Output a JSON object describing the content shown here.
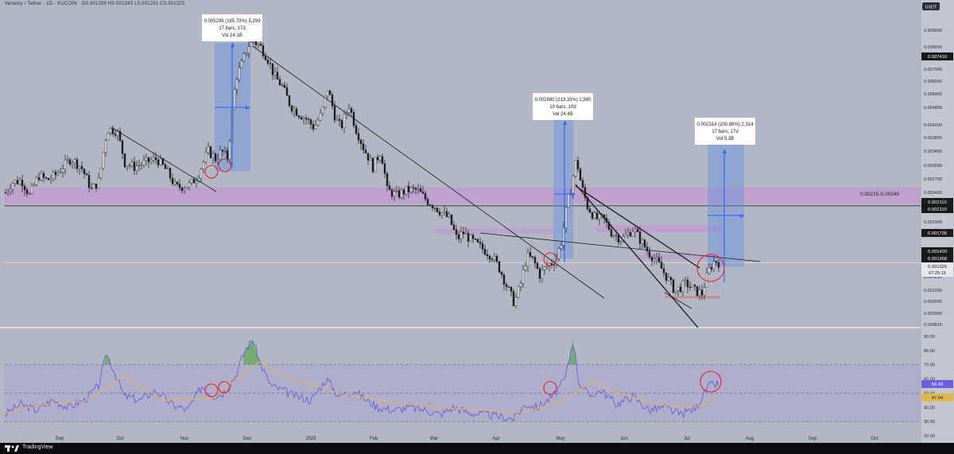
{
  "header": {
    "symbol_line": "Verasity / Tether · 1D · KUCOIN",
    "ohlc": {
      "o_label": "O",
      "o": "0.001299",
      "h_label": "H",
      "h": "0.001343",
      "l_label": "L",
      "l": "0.001251",
      "c_label": "C",
      "c": "0.001325"
    }
  },
  "price_scale": {
    "currency": "USDT",
    "ticks": [
      "0.009000",
      "0.008000",
      "0.007000",
      "0.006000",
      "0.005400",
      "0.004800",
      "0.004200",
      "0.003800",
      "0.003400",
      "0.003000",
      "0.002700",
      "0.002400",
      "0.001900",
      "0.001210",
      "0.001090",
      "0.000990",
      "0.000900",
      "0.000815"
    ],
    "tags": {
      "recent_high": "0.007416",
      "line_a": "0.002110",
      "line_b": "0.002110",
      "res_mid": "0.001735",
      "res_low": "0.001420",
      "res_low2": "0.001368",
      "last_price": "0.001325",
      "countdown": "07:25:19"
    },
    "zone_label": "0.00215-0.00245"
  },
  "rsi_scale": {
    "ticks": [
      "90.00",
      "80.00",
      "70.00",
      "60.00",
      "50.00",
      "40.00",
      "30.00",
      "20.00"
    ],
    "tags": {
      "rsi": "56.43",
      "ma": "47.04"
    }
  },
  "time_axis": [
    "Sep",
    "Oct",
    "Nov",
    "Dec",
    "2025",
    "Feb",
    "Mar",
    "Apr",
    "May",
    "Jun",
    "Jul",
    "Aug",
    "Sep",
    "Oct"
  ],
  "measure_boxes": [
    {
      "line1": "0.005299 (185.73%) 5,299",
      "line2": "17 bars, 17d",
      "line3": "Vol 24.1B"
    },
    {
      "line1": "0.002880 (213.33%) 2,880",
      "line2": "10 bars, 10d",
      "line3": "Vol 24.4B"
    },
    {
      "line1": "0.002314 (200.86%) 2,314",
      "line2": "17 bars, 17d",
      "line3": "Vol 5.3B"
    }
  ],
  "footer": {
    "brand": "TradingView"
  },
  "colors": {
    "background": "#b3b6c3",
    "candle": "#1e1e22",
    "zone": "#c68fd6",
    "measure": "#6a8fe0",
    "arrow": "#2962ff",
    "rsi_line": "#6d5ee0",
    "rsi_ma": "#e0b84a",
    "circle": "#e0282c"
  },
  "chart_data": {
    "type": "candlestick",
    "scale": "log",
    "ylim": [
      0.00079,
      0.0105
    ],
    "months": [
      "Sep",
      "Oct",
      "Nov",
      "Dec",
      "Jan",
      "Feb",
      "Mar",
      "Apr",
      "May",
      "Jun",
      "Jul",
      "Aug",
      "Sep",
      "Oct"
    ],
    "price_anchors": [
      [
        0,
        0.00235
      ],
      [
        8,
        0.00255
      ],
      [
        20,
        0.0026
      ],
      [
        30,
        0.0023
      ],
      [
        42,
        0.0027
      ],
      [
        52,
        0.0026
      ],
      [
        62,
        0.0027
      ],
      [
        72,
        0.0029
      ],
      [
        82,
        0.0031
      ],
      [
        95,
        0.0029
      ],
      [
        108,
        0.0024
      ],
      [
        118,
        0.0026
      ],
      [
        128,
        0.00395
      ],
      [
        140,
        0.0039
      ],
      [
        150,
        0.003
      ],
      [
        162,
        0.0029
      ],
      [
        175,
        0.003
      ],
      [
        190,
        0.0031
      ],
      [
        203,
        0.0028
      ],
      [
        214,
        0.00245
      ],
      [
        232,
        0.0025
      ],
      [
        242,
        0.0027
      ],
      [
        255,
        0.0033
      ],
      [
        264,
        0.0031
      ],
      [
        272,
        0.0033
      ],
      [
        280,
        0.0031
      ],
      [
        290,
        0.006
      ],
      [
        298,
        0.0068
      ],
      [
        305,
        0.0078
      ],
      [
        312,
        0.0081
      ],
      [
        320,
        0.0078
      ],
      [
        330,
        0.007
      ],
      [
        338,
        0.0061
      ],
      [
        348,
        0.0056
      ],
      [
        358,
        0.0048
      ],
      [
        368,
        0.0045
      ],
      [
        378,
        0.0043
      ],
      [
        388,
        0.004
      ],
      [
        398,
        0.0045
      ],
      [
        405,
        0.0055
      ],
      [
        415,
        0.0043
      ],
      [
        422,
        0.004
      ],
      [
        432,
        0.0048
      ],
      [
        440,
        0.004
      ],
      [
        450,
        0.0034
      ],
      [
        462,
        0.0029
      ],
      [
        472,
        0.0033
      ],
      [
        480,
        0.0024
      ],
      [
        492,
        0.0023
      ],
      [
        505,
        0.0024
      ],
      [
        518,
        0.0024
      ],
      [
        530,
        0.0022
      ],
      [
        540,
        0.0021
      ],
      [
        548,
        0.002
      ],
      [
        558,
        0.0019
      ],
      [
        568,
        0.0016
      ],
      [
        575,
        0.0017
      ],
      [
        585,
        0.0016
      ],
      [
        598,
        0.0015
      ],
      [
        612,
        0.0014
      ],
      [
        622,
        0.00125
      ],
      [
        630,
        0.0011
      ],
      [
        640,
        0.00095
      ],
      [
        648,
        0.00112
      ],
      [
        656,
        0.0014
      ],
      [
        664,
        0.00135
      ],
      [
        672,
        0.0012
      ],
      [
        682,
        0.0013
      ],
      [
        692,
        0.00135
      ],
      [
        700,
        0.0016
      ],
      [
        706,
        0.0021
      ],
      [
        712,
        0.0025
      ],
      [
        718,
        0.0031
      ],
      [
        724,
        0.0025
      ],
      [
        732,
        0.0021
      ],
      [
        742,
        0.0019
      ],
      [
        752,
        0.0019
      ],
      [
        762,
        0.0017
      ],
      [
        775,
        0.0016
      ],
      [
        790,
        0.00175
      ],
      [
        798,
        0.0016
      ],
      [
        808,
        0.00145
      ],
      [
        818,
        0.00135
      ],
      [
        830,
        0.0012
      ],
      [
        842,
        0.00105
      ],
      [
        856,
        0.00112
      ],
      [
        868,
        0.00105
      ],
      [
        876,
        0.00103
      ],
      [
        885,
        0.00125
      ],
      [
        892,
        0.00135
      ],
      [
        898,
        0.001325
      ]
    ],
    "rsi_anchors": [
      [
        0,
        35
      ],
      [
        20,
        42
      ],
      [
        40,
        38
      ],
      [
        60,
        45
      ],
      [
        80,
        40
      ],
      [
        100,
        45
      ],
      [
        118,
        55
      ],
      [
        128,
        78
      ],
      [
        138,
        65
      ],
      [
        150,
        48
      ],
      [
        170,
        45
      ],
      [
        190,
        52
      ],
      [
        210,
        42
      ],
      [
        230,
        38
      ],
      [
        248,
        55
      ],
      [
        262,
        48
      ],
      [
        275,
        50
      ],
      [
        290,
        62
      ],
      [
        302,
        80
      ],
      [
        312,
        88
      ],
      [
        322,
        70
      ],
      [
        335,
        55
      ],
      [
        350,
        52
      ],
      [
        365,
        48
      ],
      [
        385,
        45
      ],
      [
        405,
        60
      ],
      [
        420,
        48
      ],
      [
        440,
        52
      ],
      [
        455,
        45
      ],
      [
        470,
        40
      ],
      [
        490,
        38
      ],
      [
        510,
        40
      ],
      [
        530,
        38
      ],
      [
        548,
        35
      ],
      [
        565,
        40
      ],
      [
        585,
        36
      ],
      [
        605,
        35
      ],
      [
        625,
        33
      ],
      [
        640,
        32
      ],
      [
        655,
        42
      ],
      [
        670,
        40
      ],
      [
        690,
        48
      ],
      [
        705,
        60
      ],
      [
        715,
        88
      ],
      [
        722,
        58
      ],
      [
        735,
        48
      ],
      [
        750,
        52
      ],
      [
        770,
        42
      ],
      [
        790,
        48
      ],
      [
        810,
        38
      ],
      [
        830,
        40
      ],
      [
        850,
        35
      ],
      [
        870,
        40
      ],
      [
        885,
        55
      ],
      [
        898,
        56.4
      ]
    ],
    "rsi_ma_anchors": [
      [
        0,
        36
      ],
      [
        50,
        42
      ],
      [
        100,
        44
      ],
      [
        150,
        62
      ],
      [
        200,
        45
      ],
      [
        260,
        46
      ],
      [
        320,
        72
      ],
      [
        360,
        60
      ],
      [
        420,
        50
      ],
      [
        480,
        44
      ],
      [
        540,
        40
      ],
      [
        600,
        38
      ],
      [
        650,
        36
      ],
      [
        700,
        44
      ],
      [
        740,
        58
      ],
      [
        770,
        50
      ],
      [
        820,
        42
      ],
      [
        870,
        40
      ],
      [
        898,
        47
      ]
    ],
    "rsi_levels": [
      70,
      50,
      30
    ]
  }
}
